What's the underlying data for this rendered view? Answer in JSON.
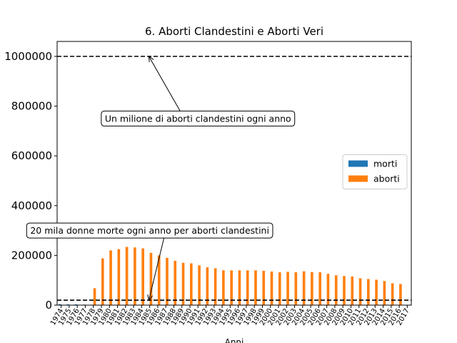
{
  "chart_data": {
    "type": "bar",
    "title": "6. Aborti Clandestini e Aborti Veri",
    "xlabel": "Anni",
    "ylabel": "",
    "ylim": [
      0,
      1060000
    ],
    "yticks": [
      0,
      200000,
      400000,
      600000,
      800000,
      1000000
    ],
    "ytick_labels": [
      "0",
      "200000",
      "400000",
      "600000",
      "800000",
      "1000000"
    ],
    "categories": [
      "1974",
      "1975",
      "1976",
      "1977",
      "1978",
      "1979",
      "1980",
      "1981",
      "1982",
      "1983",
      "1984",
      "1985",
      "1986",
      "1987",
      "1988",
      "1989",
      "1990",
      "1991",
      "1992",
      "1993",
      "1994",
      "1995",
      "1996",
      "1997",
      "1998",
      "1999",
      "2000",
      "2001",
      "2002",
      "2003",
      "2004",
      "2005",
      "2006",
      "2007",
      "2008",
      "2009",
      "2010",
      "2011",
      "2012",
      "2013",
      "2014",
      "2015",
      "2016",
      "2017"
    ],
    "series": [
      {
        "name": "morti",
        "color": "#1f77b4",
        "values": [
          4000,
          3000,
          3000,
          2000,
          1000,
          1000,
          1000,
          1000,
          1000,
          1000,
          1000,
          1000,
          1000,
          1000,
          1000,
          1000,
          1000,
          1000,
          1000,
          1000,
          1000,
          1000,
          1000,
          1000,
          1000,
          1000,
          1000,
          1000,
          1000,
          1000,
          1000,
          1000,
          1000,
          1000,
          1000,
          1000,
          1000,
          1000,
          1000,
          1000,
          1000,
          1000,
          1000,
          0
        ]
      },
      {
        "name": "aborti",
        "color": "#ff7f0e",
        "values": [
          0,
          0,
          0,
          0,
          68000,
          188000,
          220000,
          225000,
          234000,
          232000,
          228000,
          210000,
          200000,
          190000,
          178000,
          170000,
          168000,
          160000,
          152000,
          148000,
          140000,
          140000,
          140000,
          140000,
          140000,
          138000,
          135000,
          132000,
          134000,
          132000,
          136000,
          133000,
          132000,
          126000,
          120000,
          117000,
          115000,
          108000,
          105000,
          102000,
          97000,
          88000,
          85000,
          0
        ]
      }
    ],
    "reference_lines": [
      {
        "value": 1000000,
        "style": "dashed",
        "color": "#000000"
      },
      {
        "value": 20000,
        "style": "dashed",
        "color": "#000000"
      }
    ],
    "annotations": [
      {
        "text": "Un milione di aborti clandestini ogni anno",
        "target_x": "1985",
        "target_y": 1000000,
        "text_x": "1991",
        "text_y": 750000
      },
      {
        "text": "20 mila donne morte ogni anno per aborti clandestini",
        "target_x": "1985",
        "target_y": 20000,
        "text_x": "1985",
        "text_y": 300000
      }
    ],
    "legend": {
      "position": "center-right"
    },
    "grid": false
  }
}
